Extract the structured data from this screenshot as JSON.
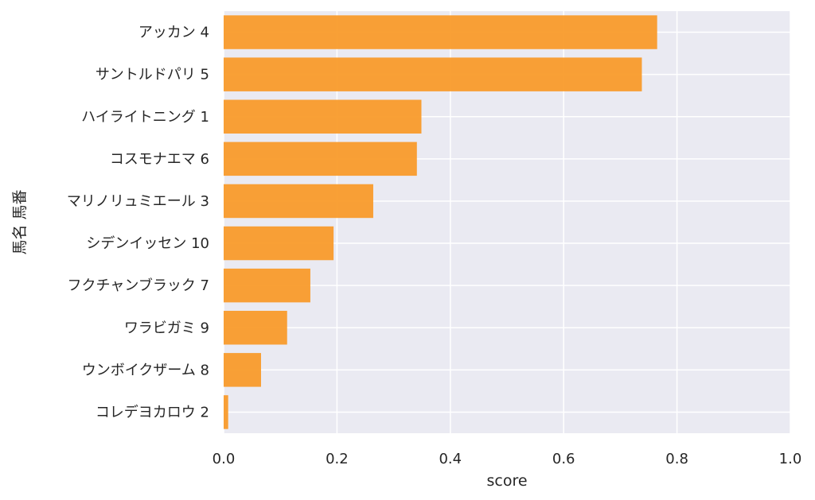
{
  "chart_data": {
    "type": "bar",
    "orientation": "horizontal",
    "categories": [
      "アッカン 4",
      "サントルドパリ 5",
      "ハイライトニング 1",
      "コスモナエマ 6",
      "マリノリュミエール 3",
      "シデンイッセン 10",
      "フクチャンブラック 7",
      "ワラビガミ 9",
      "ウンボイクザーム 8",
      "コレデヨカロウ 2"
    ],
    "values": [
      0.765,
      0.738,
      0.349,
      0.341,
      0.264,
      0.194,
      0.153,
      0.112,
      0.066,
      0.008
    ],
    "xlabel": "score",
    "ylabel": "馬名 馬番",
    "xlim": [
      0,
      1.0
    ],
    "xticks": [
      "0.0",
      "0.2",
      "0.4",
      "0.6",
      "0.8",
      "1.0"
    ],
    "grid": true,
    "colors": {
      "bar": "#f99b2b",
      "plot_background": "#eaeaf2",
      "grid": "#ffffff",
      "text": "#262626"
    }
  }
}
